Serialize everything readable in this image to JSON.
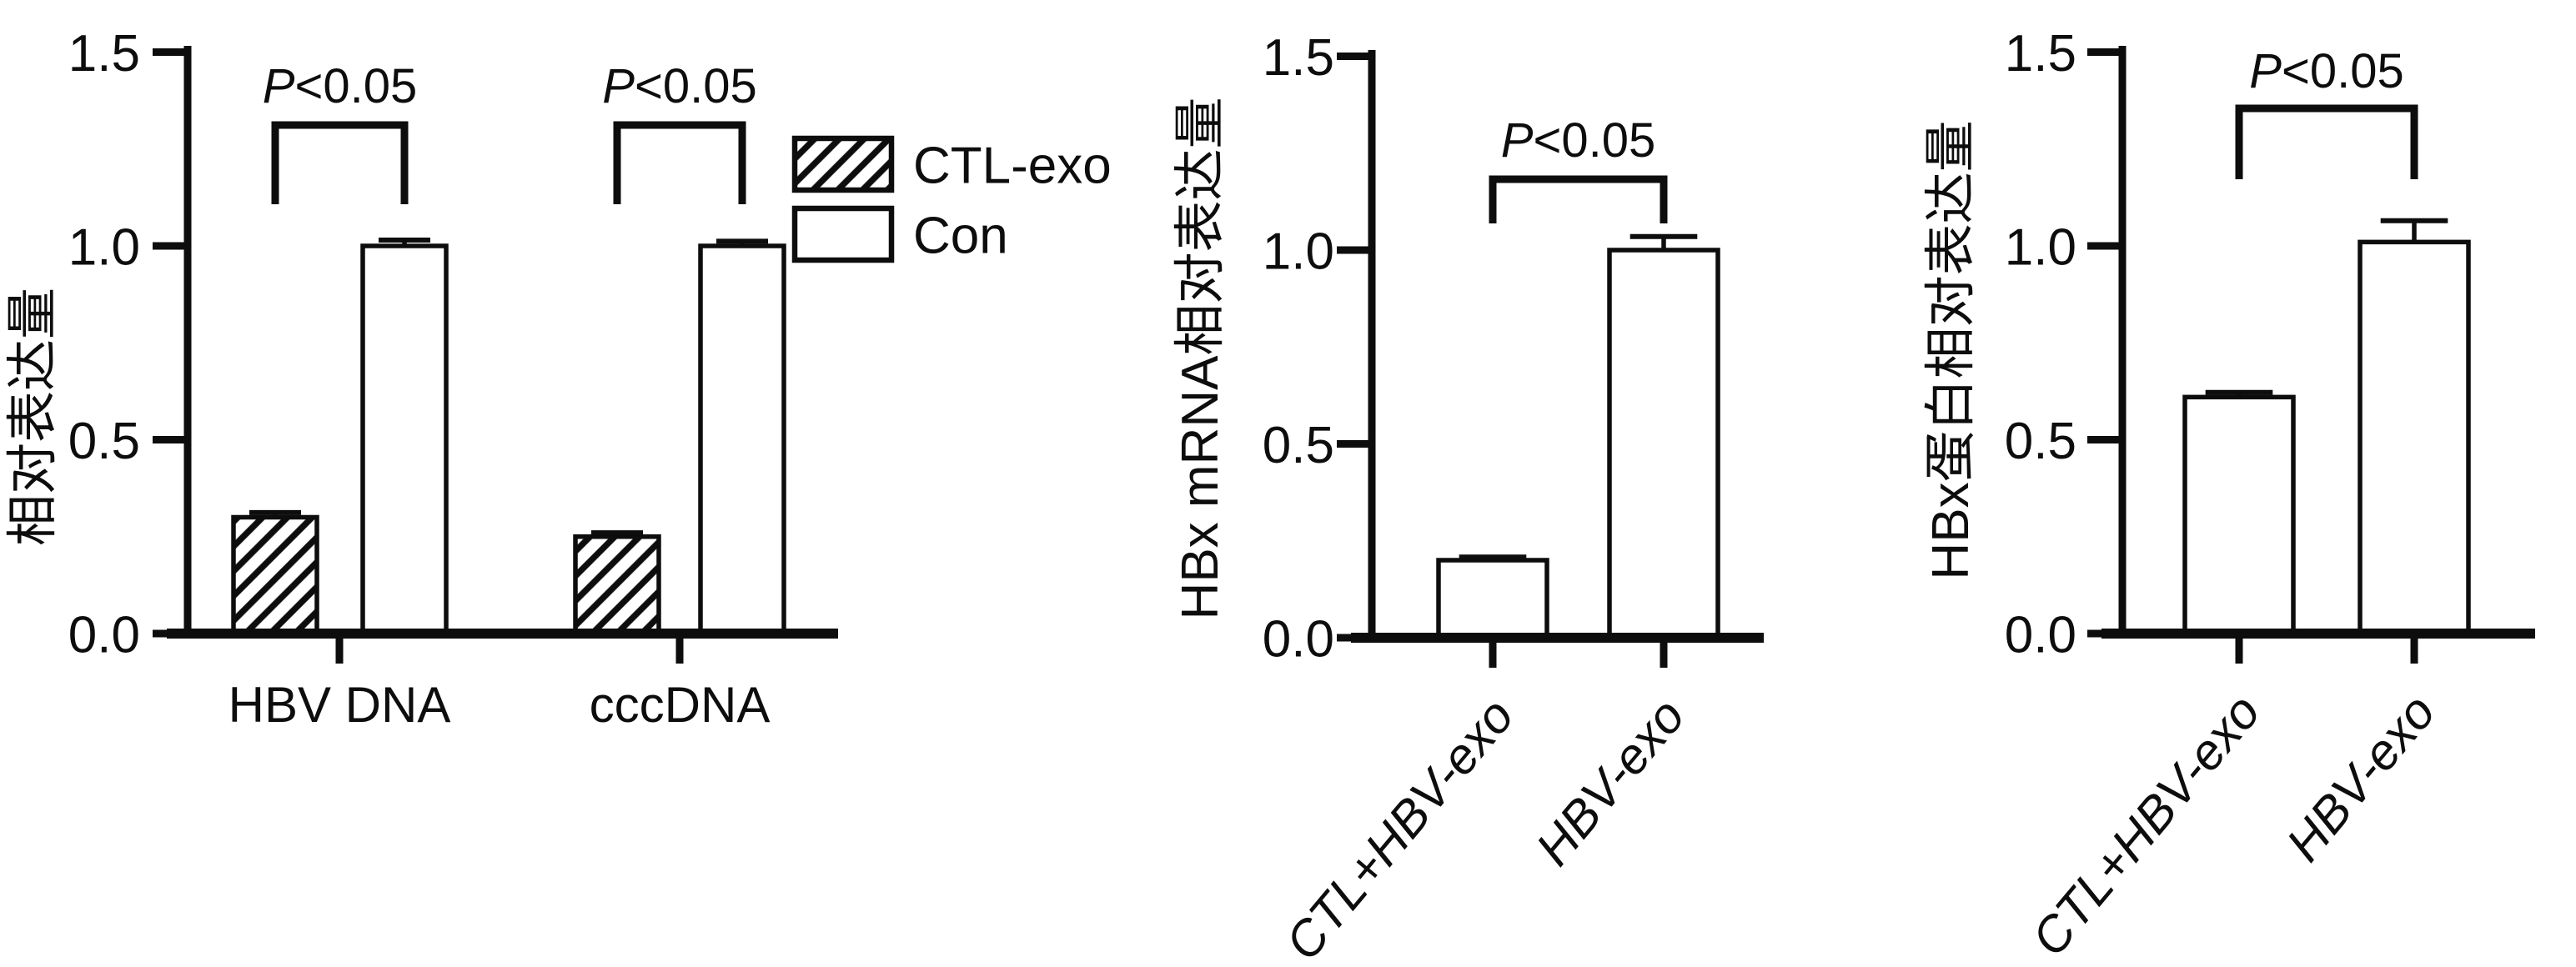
{
  "figure": {
    "background_color": "#ffffff",
    "ink_color": "#0d0d0d",
    "significance_label": "P<0.05"
  },
  "chart_data": [
    {
      "id": "relative-expression",
      "type": "bar",
      "title": "",
      "xlabel": "",
      "ylabel": "相对表达量",
      "ylim": [
        0,
        1.5
      ],
      "yticks": [
        0.0,
        0.5,
        1.0,
        1.5
      ],
      "ytick_labels": [
        "0.0",
        "0.5",
        "1.0",
        "1.5"
      ],
      "grid": false,
      "categories": [
        "HBV DNA",
        "cccDNA"
      ],
      "series": [
        {
          "name": "CTL-exo",
          "fill": "hatch",
          "values": [
            0.3,
            0.25
          ],
          "errors": [
            0.012,
            0.01
          ]
        },
        {
          "name": "Con",
          "fill": "white",
          "values": [
            1.0,
            1.0
          ],
          "errors": [
            0.015,
            0.012
          ]
        }
      ],
      "legend": {
        "show": true,
        "position": "right-top",
        "entries": [
          "CTL-exo",
          "Con"
        ]
      },
      "annotations": [
        {
          "text": "P<0.05",
          "group": 0
        },
        {
          "text": "P<0.05",
          "group": 1
        }
      ],
      "xtick_rotation": 0,
      "xtick_italic": false
    },
    {
      "id": "hbx-mrna",
      "type": "bar",
      "title": "",
      "xlabel": "",
      "ylabel": "HBx mRNA相对表达量",
      "ylim": [
        0,
        1.5
      ],
      "yticks": [
        0.0,
        0.5,
        1.0,
        1.5
      ],
      "ytick_labels": [
        "0.0",
        "0.5",
        "1.0",
        "1.5"
      ],
      "grid": false,
      "categories": [
        "CTL+HBV-exo",
        "HBV-exo"
      ],
      "series": [
        {
          "name": "",
          "fill": "white",
          "values": [
            0.2,
            1.0
          ],
          "errors": [
            0.008,
            0.035
          ]
        }
      ],
      "legend": {
        "show": false,
        "position": "",
        "entries": []
      },
      "annotations": [
        {
          "text": "P<0.05"
        }
      ],
      "xtick_rotation": -50,
      "xtick_italic": true
    },
    {
      "id": "hbx-protein",
      "type": "bar",
      "title": "",
      "xlabel": "",
      "ylabel": "HBx蛋白相对表达量",
      "ylim": [
        0,
        1.5
      ],
      "yticks": [
        0.0,
        0.5,
        1.0,
        1.5
      ],
      "ytick_labels": [
        "0.0",
        "0.5",
        "1.0",
        "1.5"
      ],
      "grid": false,
      "categories": [
        "CTL+HBV-exo",
        "HBV-exo"
      ],
      "series": [
        {
          "name": "",
          "fill": "white",
          "values": [
            0.61,
            1.01
          ],
          "errors": [
            0.012,
            0.055
          ]
        }
      ],
      "legend": {
        "show": false,
        "position": "",
        "entries": []
      },
      "annotations": [
        {
          "text": "P<0.05"
        }
      ],
      "xtick_rotation": -50,
      "xtick_italic": true
    }
  ]
}
